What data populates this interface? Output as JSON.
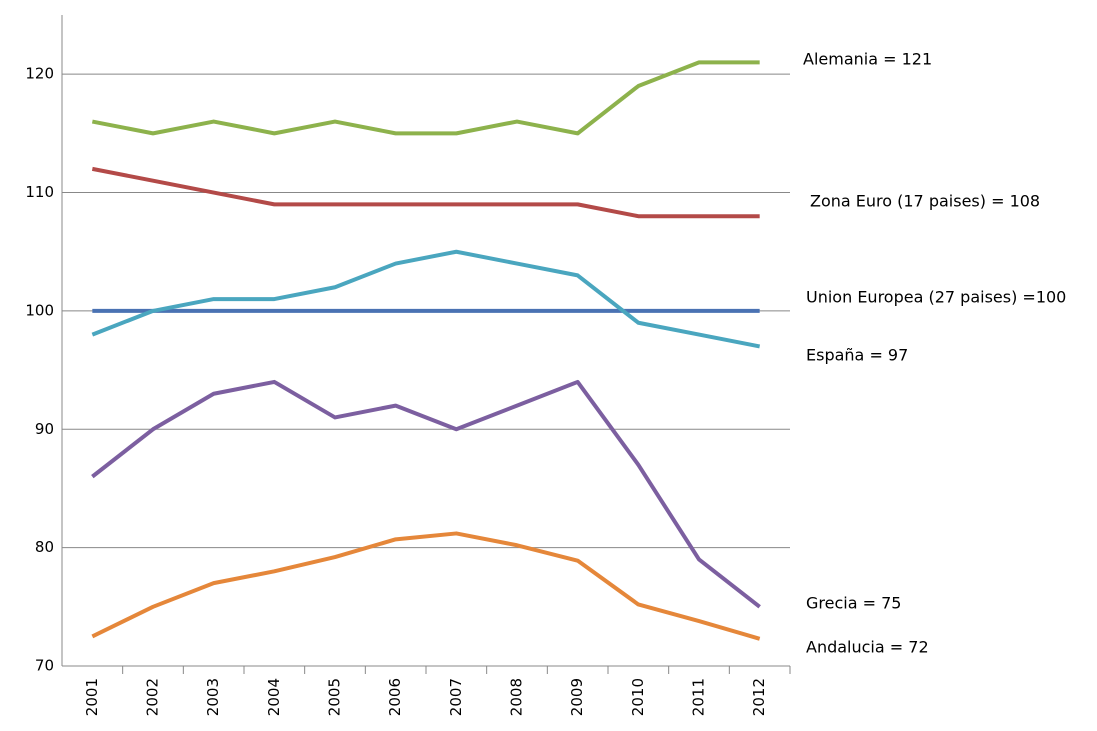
{
  "chart_data": {
    "type": "line",
    "categories": [
      "2001",
      "2002",
      "2003",
      "2004",
      "2005",
      "2006",
      "2007",
      "2008",
      "2009",
      "2010",
      "2011",
      "2012"
    ],
    "ylim": [
      70,
      125
    ],
    "yticks": [
      70,
      80,
      90,
      100,
      110,
      120
    ],
    "grid": true,
    "series": [
      {
        "name": "Alemania =  121",
        "color": "#8db24c",
        "values": [
          116,
          115,
          116,
          115,
          116,
          115,
          115,
          116,
          115,
          119,
          121,
          121
        ]
      },
      {
        "name": "Zona Euro (17 paises) = 108",
        "color": "#b34a48",
        "values": [
          112,
          111,
          110,
          109,
          109,
          109,
          109,
          109,
          109,
          108,
          108,
          108
        ]
      },
      {
        "name": "Union Europea (27 paises) =100",
        "color": "#4a72b3",
        "values": [
          100,
          100,
          100,
          100,
          100,
          100,
          100,
          100,
          100,
          100,
          100,
          100
        ]
      },
      {
        "name": "España = 97",
        "color": "#4aa6bf",
        "values": [
          98,
          100,
          101,
          101,
          102,
          104,
          105,
          104,
          103,
          99,
          98,
          97
        ]
      },
      {
        "name": "Grecia = 75",
        "color": "#7c5fa0",
        "values": [
          86,
          90,
          93,
          94,
          91,
          92,
          90,
          92,
          94,
          87,
          79,
          75
        ]
      },
      {
        "name": "Andalucia = 72",
        "color": "#e5873a",
        "values": [
          72.5,
          75,
          77,
          78,
          79.2,
          80.7,
          81.2,
          80.2,
          78.9,
          75.2,
          73.8,
          72.3
        ]
      }
    ]
  }
}
